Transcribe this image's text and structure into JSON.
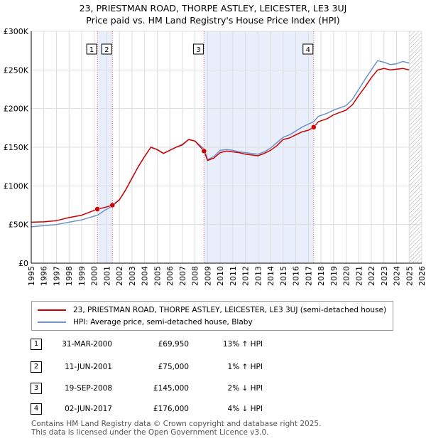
{
  "title_line1": "23, PRIESTMAN ROAD, THORPE ASTLEY, LEICESTER, LE3 3UJ",
  "title_line2": "Price paid vs. HM Land Registry's House Price Index (HPI)",
  "chart_data": {
    "type": "line",
    "ylim": [
      0,
      300000
    ],
    "xlim": [
      1995,
      2026
    ],
    "yticks": [
      0,
      50000,
      100000,
      150000,
      200000,
      250000,
      300000
    ],
    "ytick_labels": [
      "£0",
      "£50K",
      "£100K",
      "£150K",
      "£200K",
      "£250K",
      "£300K"
    ],
    "xticks": [
      1995,
      1996,
      1997,
      1998,
      1999,
      2000,
      2001,
      2002,
      2003,
      2004,
      2005,
      2006,
      2007,
      2008,
      2009,
      2010,
      2011,
      2012,
      2013,
      2014,
      2015,
      2016,
      2017,
      2018,
      2019,
      2020,
      2021,
      2022,
      2023,
      2024,
      2025,
      2026
    ],
    "shaded_ranges": [
      [
        2000.25,
        2001.44
      ],
      [
        2008.72,
        2017.42
      ]
    ],
    "future_hatch_from": 2025.0,
    "colors": {
      "price": "#cc0000",
      "hpi": "#6f93c6",
      "shade": "#e8eefa",
      "vline": "#e06060"
    },
    "series": [
      {
        "name": "23, PRIESTMAN ROAD, THORPE ASTLEY, LEICESTER, LE3 3UJ (semi-detached house)",
        "color": "#cc0000",
        "points": [
          [
            1995.0,
            53000
          ],
          [
            1996.0,
            53500
          ],
          [
            1997.0,
            55000
          ],
          [
            1998.0,
            59000
          ],
          [
            1999.0,
            62000
          ],
          [
            2000.25,
            69950
          ],
          [
            2000.8,
            72000
          ],
          [
            2001.44,
            75000
          ],
          [
            2002.0,
            82000
          ],
          [
            2002.5,
            95000
          ],
          [
            2003.0,
            110000
          ],
          [
            2003.5,
            125000
          ],
          [
            2004.0,
            138000
          ],
          [
            2004.5,
            150000
          ],
          [
            2005.0,
            147000
          ],
          [
            2005.5,
            142000
          ],
          [
            2006.0,
            146000
          ],
          [
            2006.5,
            150000
          ],
          [
            2007.0,
            153000
          ],
          [
            2007.5,
            160000
          ],
          [
            2008.0,
            158000
          ],
          [
            2008.72,
            145000
          ],
          [
            2009.0,
            133000
          ],
          [
            2009.5,
            136000
          ],
          [
            2010.0,
            143000
          ],
          [
            2010.5,
            145000
          ],
          [
            2011.0,
            144000
          ],
          [
            2011.5,
            143000
          ],
          [
            2012.0,
            141000
          ],
          [
            2012.5,
            140000
          ],
          [
            2013.0,
            139000
          ],
          [
            2013.5,
            142000
          ],
          [
            2014.0,
            146000
          ],
          [
            2014.5,
            152000
          ],
          [
            2015.0,
            160000
          ],
          [
            2015.5,
            162000
          ],
          [
            2016.0,
            166000
          ],
          [
            2016.5,
            170000
          ],
          [
            2017.0,
            172000
          ],
          [
            2017.42,
            176000
          ],
          [
            2017.8,
            183000
          ],
          [
            2018.5,
            187000
          ],
          [
            2019.0,
            192000
          ],
          [
            2019.5,
            195000
          ],
          [
            2020.0,
            198000
          ],
          [
            2020.5,
            205000
          ],
          [
            2021.0,
            217000
          ],
          [
            2021.5,
            228000
          ],
          [
            2022.0,
            240000
          ],
          [
            2022.5,
            250000
          ],
          [
            2023.0,
            252000
          ],
          [
            2023.5,
            250000
          ],
          [
            2024.0,
            251000
          ],
          [
            2024.5,
            252000
          ],
          [
            2025.0,
            250000
          ]
        ]
      },
      {
        "name": "HPI: Average price, semi-detached house, Blaby",
        "color": "#6f93c6",
        "points": [
          [
            1995.0,
            47000
          ],
          [
            1996.0,
            48500
          ],
          [
            1997.0,
            50000
          ],
          [
            1998.0,
            53000
          ],
          [
            1999.0,
            56000
          ],
          [
            2000.25,
            62000
          ],
          [
            2000.8,
            68000
          ],
          [
            2001.44,
            74000
          ],
          [
            2002.0,
            82000
          ],
          [
            2002.5,
            95000
          ],
          [
            2003.0,
            110000
          ],
          [
            2003.5,
            125000
          ],
          [
            2004.0,
            138000
          ],
          [
            2004.5,
            150000
          ],
          [
            2005.0,
            147000
          ],
          [
            2005.5,
            142000
          ],
          [
            2006.0,
            146000
          ],
          [
            2006.5,
            150000
          ],
          [
            2007.0,
            154000
          ],
          [
            2007.5,
            160000
          ],
          [
            2008.0,
            158000
          ],
          [
            2008.72,
            148000
          ],
          [
            2009.0,
            134000
          ],
          [
            2009.5,
            138000
          ],
          [
            2010.0,
            146000
          ],
          [
            2010.5,
            147000
          ],
          [
            2011.0,
            146000
          ],
          [
            2011.5,
            144000
          ],
          [
            2012.0,
            143000
          ],
          [
            2012.5,
            142000
          ],
          [
            2013.0,
            141000
          ],
          [
            2013.5,
            144000
          ],
          [
            2014.0,
            149000
          ],
          [
            2014.5,
            156000
          ],
          [
            2015.0,
            163000
          ],
          [
            2015.5,
            166000
          ],
          [
            2016.0,
            171000
          ],
          [
            2016.5,
            176000
          ],
          [
            2017.0,
            180000
          ],
          [
            2017.42,
            183000
          ],
          [
            2017.8,
            190000
          ],
          [
            2018.5,
            194000
          ],
          [
            2019.0,
            198000
          ],
          [
            2019.5,
            201000
          ],
          [
            2020.0,
            204000
          ],
          [
            2020.5,
            212000
          ],
          [
            2021.0,
            225000
          ],
          [
            2021.5,
            238000
          ],
          [
            2022.0,
            250000
          ],
          [
            2022.5,
            262000
          ],
          [
            2023.0,
            260000
          ],
          [
            2023.5,
            257000
          ],
          [
            2024.0,
            258000
          ],
          [
            2024.5,
            261000
          ],
          [
            2025.0,
            259000
          ]
        ]
      }
    ],
    "sales": [
      {
        "label": "1",
        "x": 2000.25,
        "y": 69950
      },
      {
        "label": "2",
        "x": 2001.44,
        "y": 75000
      },
      {
        "label": "3",
        "x": 2008.72,
        "y": 145000
      },
      {
        "label": "4",
        "x": 2017.42,
        "y": 176000
      }
    ]
  },
  "legend": {
    "price_label": "23, PRIESTMAN ROAD, THORPE ASTLEY, LEICESTER, LE3 3UJ (semi-detached house)",
    "hpi_label": "HPI: Average price, semi-detached house, Blaby"
  },
  "transactions": [
    {
      "num": "1",
      "date": "31-MAR-2000",
      "price": "£69,950",
      "hpi": "13% ↑ HPI"
    },
    {
      "num": "2",
      "date": "11-JUN-2001",
      "price": "£75,000",
      "hpi": "1% ↑ HPI"
    },
    {
      "num": "3",
      "date": "19-SEP-2008",
      "price": "£145,000",
      "hpi": "2% ↓ HPI"
    },
    {
      "num": "4",
      "date": "02-JUN-2017",
      "price": "£176,000",
      "hpi": "4% ↓ HPI"
    }
  ],
  "footer": {
    "line1": "Contains HM Land Registry data © Crown copyright and database right 2025.",
    "line2": "This data is licensed under the Open Government Licence v3.0."
  }
}
